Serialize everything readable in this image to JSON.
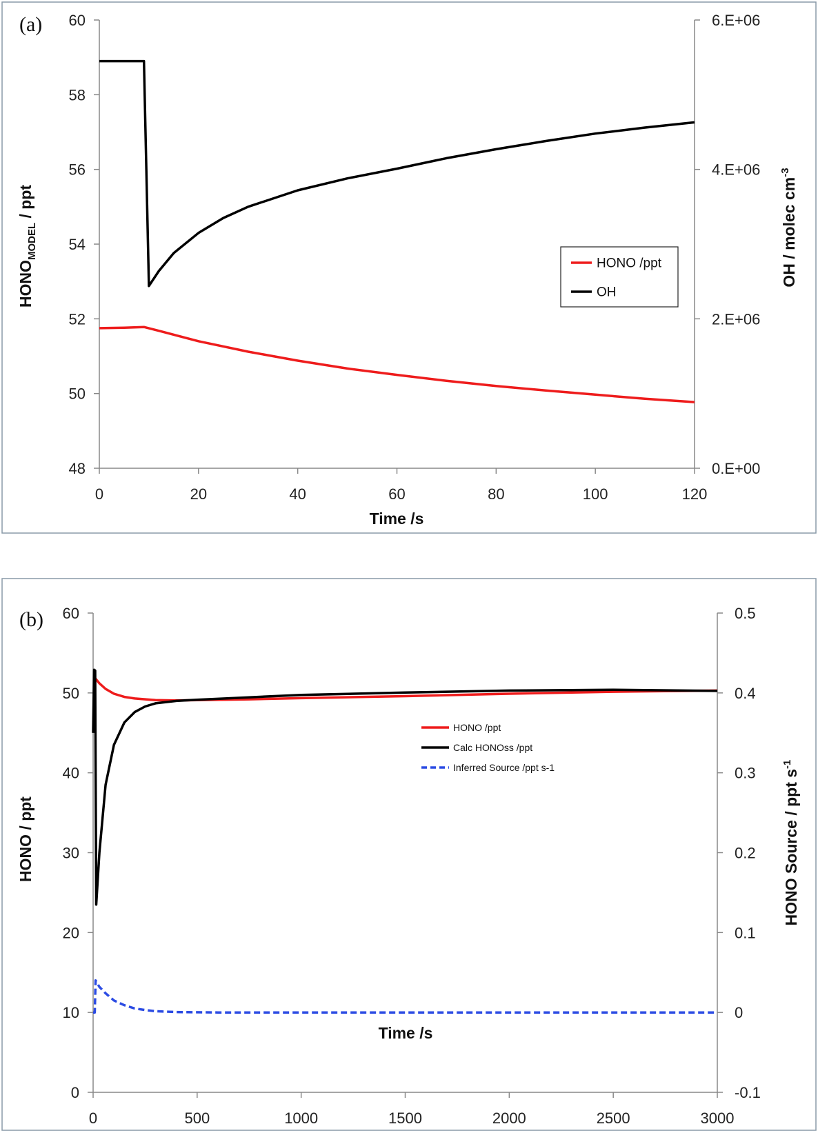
{
  "chart_data": [
    {
      "type": "line",
      "panel_label": "(a)",
      "xlabel": "Time /s",
      "ylabel": "HONO",
      "ylabel_sub": "MODEL",
      "ylabel_suffix": " / ppt",
      "y2label": "OH / molec cm",
      "y2label_sup": "-3",
      "xlim": [
        0,
        120
      ],
      "ylim": [
        48,
        60
      ],
      "y2lim": [
        0,
        6000000
      ],
      "xticks": [
        0,
        20,
        40,
        60,
        80,
        100,
        120
      ],
      "yticks": [
        48,
        50,
        52,
        54,
        56,
        58,
        60
      ],
      "y2ticks": [
        0,
        2000000,
        4000000,
        6000000
      ],
      "y2ticklabels": [
        "0.E+00",
        "2.E+06",
        "4.E+06",
        "6.E+06"
      ],
      "legend_position": "center-right",
      "series": [
        {
          "name": "HONO /ppt",
          "color": "#ee1c1c",
          "axis": "left",
          "dash": false,
          "x": [
            0,
            5,
            9,
            12,
            20,
            30,
            40,
            50,
            60,
            70,
            80,
            90,
            100,
            110,
            120
          ],
          "y": [
            51.75,
            51.76,
            51.78,
            51.68,
            51.4,
            51.12,
            50.88,
            50.67,
            50.5,
            50.34,
            50.2,
            50.08,
            49.97,
            49.86,
            49.77
          ]
        },
        {
          "name": "OH",
          "color": "#000000",
          "axis": "right",
          "dash": false,
          "x": [
            0,
            9,
            10,
            12,
            15,
            20,
            25,
            30,
            40,
            50,
            60,
            70,
            80,
            90,
            100,
            110,
            120
          ],
          "y": [
            5450000,
            5450000,
            2440000,
            2640000,
            2880000,
            3150000,
            3350000,
            3500000,
            3720000,
            3880000,
            4010000,
            4150000,
            4270000,
            4380000,
            4480000,
            4560000,
            4630000
          ]
        }
      ]
    },
    {
      "type": "line",
      "panel_label": "(b)",
      "xlabel": "Time /s",
      "ylabel": "HONO / ppt",
      "y2label": "HONO Source / ppt s",
      "y2label_sup": "-1",
      "xlim": [
        0,
        3000
      ],
      "ylim": [
        0,
        60
      ],
      "y2lim": [
        -0.1,
        0.5
      ],
      "xticks": [
        0,
        500,
        1000,
        1500,
        2000,
        2500,
        3000
      ],
      "yticks": [
        0,
        10,
        20,
        30,
        40,
        50,
        60
      ],
      "y2ticks": [
        -0.1,
        0,
        0.1,
        0.2,
        0.3,
        0.4,
        0.5
      ],
      "y2ticklabels": [
        "-0.1",
        "0",
        "0.1",
        "0.2",
        "0.3",
        "0.4",
        "0.5"
      ],
      "legend_position": "center",
      "series": [
        {
          "name": "HONO /ppt",
          "color": "#ee1c1c",
          "axis": "left",
          "dash": false,
          "x": [
            5,
            30,
            60,
            100,
            150,
            200,
            300,
            400,
            500,
            750,
            1000,
            1500,
            2000,
            2500,
            3000
          ],
          "y": [
            52,
            51.2,
            50.5,
            49.9,
            49.5,
            49.3,
            49.1,
            49.05,
            49.1,
            49.2,
            49.35,
            49.6,
            49.9,
            50.15,
            50.3
          ]
        },
        {
          "name": "Calc HONOss /ppt",
          "color": "#000000",
          "axis": "left",
          "dash": false,
          "x": [
            0,
            5,
            10,
            15,
            30,
            60,
            100,
            150,
            200,
            250,
            300,
            400,
            500,
            750,
            1000,
            1500,
            2000,
            2500,
            3000
          ],
          "y": [
            45,
            52.9,
            52.8,
            23.5,
            30,
            38.5,
            43.5,
            46.3,
            47.6,
            48.3,
            48.7,
            49.0,
            49.15,
            49.45,
            49.75,
            50.05,
            50.3,
            50.4,
            50.25
          ]
        },
        {
          "name": "Inferred Source /ppt s-1",
          "color": "#2b4be3",
          "axis": "right",
          "dash": true,
          "x": [
            0,
            8,
            12,
            30,
            60,
            100,
            150,
            200,
            250,
            300,
            400,
            600,
            1000,
            2000,
            3000
          ],
          "y": [
            0,
            0,
            0.04,
            0.032,
            0.024,
            0.015,
            0.009,
            0.005,
            0.003,
            0.0015,
            0.0005,
            0,
            0,
            0,
            0
          ]
        }
      ]
    }
  ]
}
